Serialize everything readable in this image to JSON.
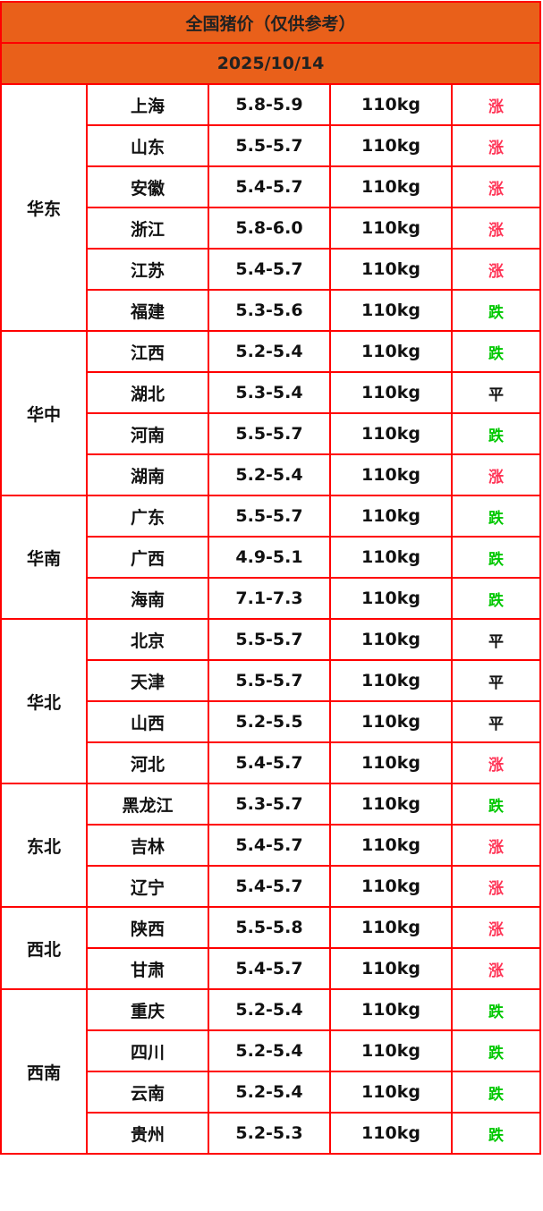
{
  "title": "全国猪价（仅供参考）",
  "date": "2025/10/14",
  "trend_colors": {
    "涨": "#ff3355",
    "跌": "#00c800",
    "平": "#111111"
  },
  "header_color": "#e9601a",
  "border_color": "#ff0000",
  "regions": [
    {
      "name": "华东",
      "rows": [
        {
          "province": "上海",
          "price": "5.8-5.9",
          "weight": "110kg",
          "trend": "涨"
        },
        {
          "province": "山东",
          "price": "5.5-5.7",
          "weight": "110kg",
          "trend": "涨"
        },
        {
          "province": "安徽",
          "price": "5.4-5.7",
          "weight": "110kg",
          "trend": "涨"
        },
        {
          "province": "浙江",
          "price": "5.8-6.0",
          "weight": "110kg",
          "trend": "涨"
        },
        {
          "province": "江苏",
          "price": "5.4-5.7",
          "weight": "110kg",
          "trend": "涨"
        },
        {
          "province": "福建",
          "price": "5.3-5.6",
          "weight": "110kg",
          "trend": "跌"
        }
      ]
    },
    {
      "name": "华中",
      "rows": [
        {
          "province": "江西",
          "price": "5.2-5.4",
          "weight": "110kg",
          "trend": "跌"
        },
        {
          "province": "湖北",
          "price": "5.3-5.4",
          "weight": "110kg",
          "trend": "平"
        },
        {
          "province": "河南",
          "price": "5.5-5.7",
          "weight": "110kg",
          "trend": "跌"
        },
        {
          "province": "湖南",
          "price": "5.2-5.4",
          "weight": "110kg",
          "trend": "涨"
        }
      ]
    },
    {
      "name": "华南",
      "rows": [
        {
          "province": "广东",
          "price": "5.5-5.7",
          "weight": "110kg",
          "trend": "跌"
        },
        {
          "province": "广西",
          "price": "4.9-5.1",
          "weight": "110kg",
          "trend": "跌"
        },
        {
          "province": "海南",
          "price": "7.1-7.3",
          "weight": "110kg",
          "trend": "跌"
        }
      ]
    },
    {
      "name": "华北",
      "rows": [
        {
          "province": "北京",
          "price": "5.5-5.7",
          "weight": "110kg",
          "trend": "平"
        },
        {
          "province": "天津",
          "price": "5.5-5.7",
          "weight": "110kg",
          "trend": "平"
        },
        {
          "province": "山西",
          "price": "5.2-5.5",
          "weight": "110kg",
          "trend": "平"
        },
        {
          "province": "河北",
          "price": "5.4-5.7",
          "weight": "110kg",
          "trend": "涨"
        }
      ]
    },
    {
      "name": "东北",
      "rows": [
        {
          "province": "黑龙江",
          "price": "5.3-5.7",
          "weight": "110kg",
          "trend": "跌"
        },
        {
          "province": "吉林",
          "price": "5.4-5.7",
          "weight": "110kg",
          "trend": "涨"
        },
        {
          "province": "辽宁",
          "price": "5.4-5.7",
          "weight": "110kg",
          "trend": "涨"
        }
      ]
    },
    {
      "name": "西北",
      "rows": [
        {
          "province": "陕西",
          "price": "5.5-5.8",
          "weight": "110kg",
          "trend": "涨"
        },
        {
          "province": "甘肃",
          "price": "5.4-5.7",
          "weight": "110kg",
          "trend": "涨"
        }
      ]
    },
    {
      "name": "西南",
      "rows": [
        {
          "province": "重庆",
          "price": "5.2-5.4",
          "weight": "110kg",
          "trend": "跌"
        },
        {
          "province": "四川",
          "price": "5.2-5.4",
          "weight": "110kg",
          "trend": "跌"
        },
        {
          "province": "云南",
          "price": "5.2-5.4",
          "weight": "110kg",
          "trend": "跌"
        },
        {
          "province": "贵州",
          "price": "5.2-5.3",
          "weight": "110kg",
          "trend": "跌"
        }
      ]
    }
  ]
}
